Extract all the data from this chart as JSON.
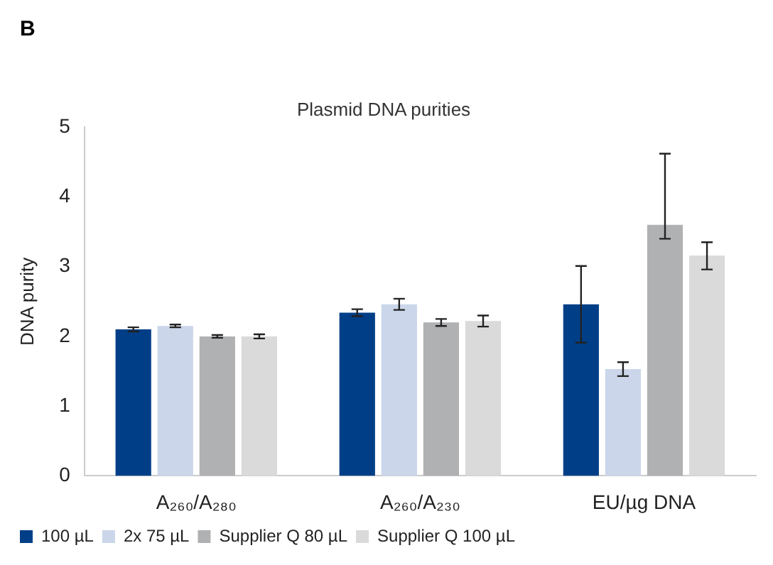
{
  "chart_data": {
    "type": "bar",
    "title": "Plasmid DNA purities",
    "ylabel": "DNA purity",
    "annotations": [
      "B"
    ],
    "categories": [
      "A₂₆₀/A₂₈₀",
      "A₂₆₀/A₂₃₀",
      "EU/µg DNA"
    ],
    "series": [
      {
        "name": "100 µL",
        "color": "#003f87",
        "values": [
          2.1,
          2.34,
          2.46
        ],
        "errors": [
          0.03,
          0.05,
          0.55
        ]
      },
      {
        "name": "2x 75 µL",
        "color": "#cbd6ea",
        "values": [
          2.15,
          2.46,
          1.53
        ],
        "errors": [
          0.02,
          0.08,
          0.1
        ]
      },
      {
        "name": "Supplier Q 80 µL",
        "color": "#b0b1b3",
        "values": [
          2.0,
          2.2,
          3.6
        ],
        "errors": [
          0.02,
          0.05,
          [
            3.4,
            4.62
          ]
        ]
      },
      {
        "name": "Supplier Q 100 µL",
        "color": "#dadada",
        "values": [
          2.0,
          2.22,
          3.16
        ],
        "errors": [
          0.03,
          0.08,
          [
            2.96,
            3.35
          ]
        ]
      }
    ],
    "ylim": [
      0,
      5
    ],
    "yticks": [
      0,
      1,
      2,
      3,
      4,
      5
    ],
    "grid": false,
    "legend": "bottom"
  }
}
